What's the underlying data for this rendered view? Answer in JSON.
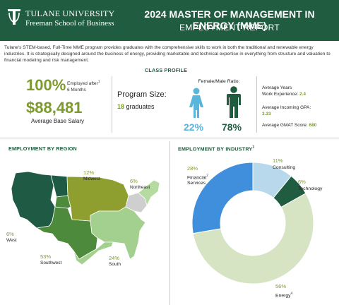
{
  "header": {
    "university": "TULANE UNIVERSITY",
    "school": "Freeman School of Business",
    "title": "2024 MASTER OF MANAGEMENT IN ENERGY (MME)",
    "subtitle": "EMPLOYMENT REPORT",
    "background_color": "#205c40"
  },
  "intro": "Tulane's STEM-based, Full-Time MME program provides graduates with the comprehensive skills to work in both the traditional and renewable energy industries. It is strategically designed around the business of energy, providing marketable and technical expertise in everything from structure and valuation to financial modeling and risk management.",
  "class_profile": {
    "heading": "CLASS PROFILE",
    "employed_pct": "100%",
    "employed_label": "Employed after",
    "employed_months": "6 Months",
    "salary": "$88,481",
    "salary_label": "Average Base Salary",
    "program_size_label": "Program Size:",
    "program_size_count": "18",
    "program_size_unit": "graduates",
    "gender_label": "Female/Male Ratio:",
    "female_pct": "22%",
    "male_pct": "78%",
    "work_exp_label_1": "Average Years",
    "work_exp_label_2": "Work Experience:",
    "work_exp_value": "2.4",
    "gpa_label": "Average Incoming GPA:",
    "gpa_value": "3.33",
    "gmat_label": "Average GMAT Score:",
    "gmat_value": "680"
  },
  "region": {
    "heading": "EMPLOYMENT BY REGION",
    "items": [
      {
        "name": "Midwest",
        "pct": "12%"
      },
      {
        "name": "Northeast",
        "pct": "6%"
      },
      {
        "name": "West",
        "pct": "6%"
      },
      {
        "name": "Southwest",
        "pct": "53%"
      },
      {
        "name": "South",
        "pct": "24%"
      }
    ],
    "colors": {
      "West": "#1f5a45",
      "Southwest": "#4e8a3c",
      "Midwest": "#8f9f2f",
      "South": "#a3d08e",
      "Northeast": "#b5dba0",
      "Other": "#cfcfcf"
    }
  },
  "industry": {
    "heading": "EMPLOYMENT BY INDUSTRY",
    "items": [
      {
        "name": "Consulting",
        "pct": "11%",
        "value": 11,
        "color": "#b8d8ec"
      },
      {
        "name": "Technology",
        "pct": "6%",
        "value": 6,
        "color": "#205c40"
      },
      {
        "name": "Energy",
        "pct": "56%",
        "value": 56,
        "color": "#d6e4c4"
      },
      {
        "name": "Financial Services",
        "pct": "28%",
        "value": 28,
        "color": "#3f8fdc"
      }
    ]
  },
  "footnote_marks": {
    "one": "1",
    "two": "2",
    "three": "3",
    "four": "4"
  }
}
